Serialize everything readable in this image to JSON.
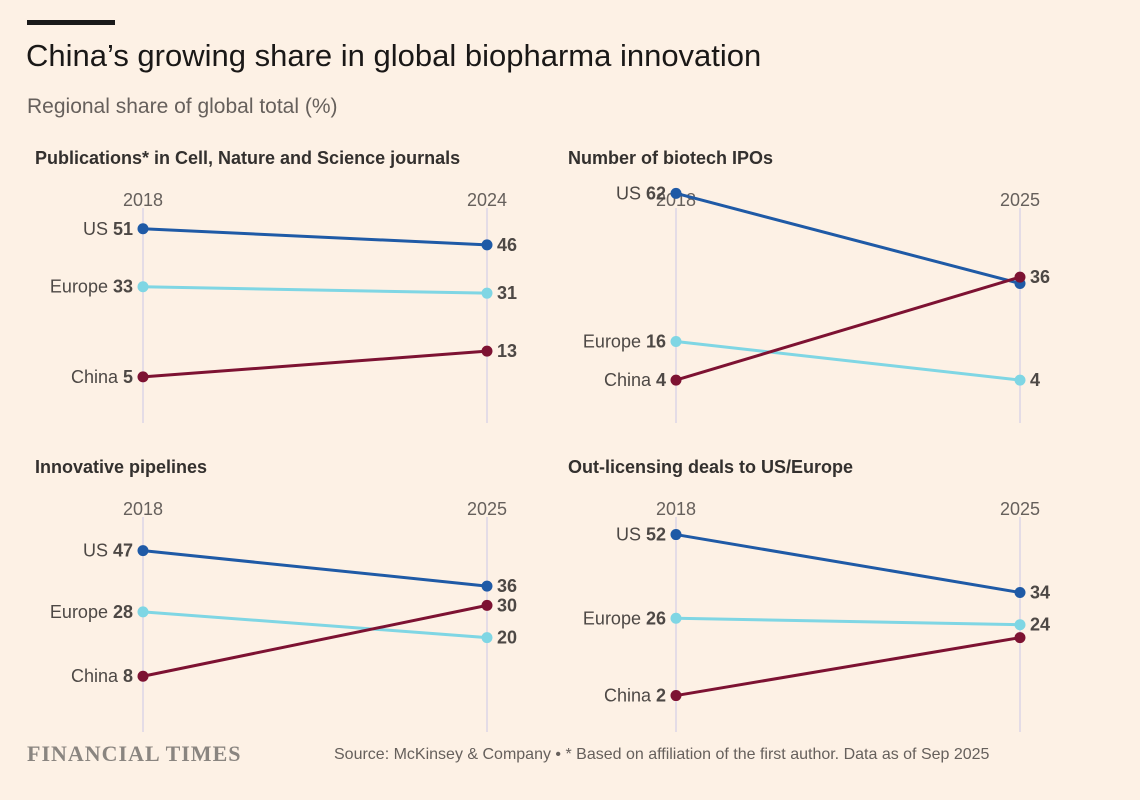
{
  "header": {
    "title": "China’s growing share in global biopharma innovation",
    "subtitle": "Regional share of global total (%)"
  },
  "footer": {
    "logo": "FINANCIAL TIMES",
    "source": "Source: McKinsey & Company • * Based on affiliation of the first author. Data as of Sep 2025"
  },
  "colors": {
    "US": "#1f5aa6",
    "Europe": "#7fd6e4",
    "China": "#7d1232",
    "axis": "#dcd6e6",
    "background": "#fdf1e5"
  },
  "chart_data": [
    {
      "type": "line",
      "title": "Publications* in Cell, Nature and Science journals",
      "x": [
        "2018",
        "2024"
      ],
      "ylim": [
        0,
        70
      ],
      "series": [
        {
          "name": "US",
          "values": [
            51,
            46
          ]
        },
        {
          "name": "Europe",
          "values": [
            33,
            31
          ]
        },
        {
          "name": "China",
          "values": [
            5,
            13
          ]
        }
      ]
    },
    {
      "type": "line",
      "title": "Number of biotech IPOs",
      "x": [
        "2018",
        "2025"
      ],
      "ylim": [
        0,
        70
      ],
      "series": [
        {
          "name": "US",
          "values": [
            62,
            34
          ]
        },
        {
          "name": "Europe",
          "values": [
            16,
            4
          ]
        },
        {
          "name": "China",
          "values": [
            4,
            36
          ]
        }
      ]
    },
    {
      "type": "line",
      "title": "Innovative pipelines",
      "x": [
        "2018",
        "2025"
      ],
      "ylim": [
        0,
        70
      ],
      "series": [
        {
          "name": "US",
          "values": [
            47,
            36
          ]
        },
        {
          "name": "Europe",
          "values": [
            28,
            20
          ]
        },
        {
          "name": "China",
          "values": [
            8,
            30
          ]
        }
      ]
    },
    {
      "type": "line",
      "title": "Out-licensing deals to US/Europe",
      "x": [
        "2018",
        "2025"
      ],
      "ylim": [
        0,
        70
      ],
      "series": [
        {
          "name": "US",
          "values": [
            52,
            34
          ]
        },
        {
          "name": "Europe",
          "values": [
            26,
            24
          ]
        },
        {
          "name": "China",
          "values": [
            2,
            20
          ]
        }
      ]
    }
  ]
}
